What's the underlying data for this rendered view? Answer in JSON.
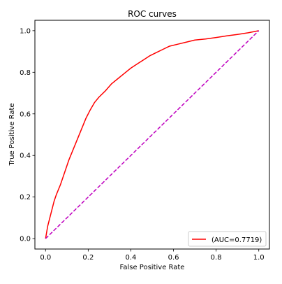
{
  "chart_data": {
    "type": "line",
    "title": "ROC curves",
    "xlabel": "False Positive Rate",
    "ylabel": "True Positive Rate",
    "xlim": [
      -0.05,
      1.05
    ],
    "ylim": [
      -0.05,
      1.05
    ],
    "xticks": [
      "0.0",
      "0.2",
      "0.4",
      "0.6",
      "0.8",
      "1.0"
    ],
    "yticks": [
      "0.0",
      "0.2",
      "0.4",
      "0.6",
      "0.8",
      "1.0"
    ],
    "grid": false,
    "legend_position": "lower right",
    "series": [
      {
        "name": "(AUC=0.7719)",
        "color": "#ff0000",
        "style": "solid",
        "x": [
          0.0,
          0.005,
          0.01,
          0.02,
          0.03,
          0.04,
          0.05,
          0.07,
          0.09,
          0.11,
          0.13,
          0.15,
          0.17,
          0.19,
          0.21,
          0.23,
          0.25,
          0.28,
          0.31,
          0.34,
          0.37,
          0.4,
          0.43,
          0.46,
          0.49,
          0.52,
          0.55,
          0.58,
          0.62,
          0.66,
          0.7,
          0.75,
          0.8,
          0.85,
          0.9,
          0.95,
          1.0
        ],
        "y": [
          0.0,
          0.03,
          0.06,
          0.1,
          0.14,
          0.18,
          0.21,
          0.26,
          0.32,
          0.38,
          0.43,
          0.48,
          0.53,
          0.58,
          0.62,
          0.655,
          0.68,
          0.71,
          0.745,
          0.77,
          0.795,
          0.82,
          0.84,
          0.86,
          0.88,
          0.895,
          0.91,
          0.925,
          0.935,
          0.945,
          0.955,
          0.96,
          0.967,
          0.975,
          0.982,
          0.99,
          1.0
        ]
      },
      {
        "name": "",
        "color": "#bf00bf",
        "style": "dashed",
        "x": [
          0.0,
          1.0
        ],
        "y": [
          0.0,
          1.0
        ]
      }
    ]
  }
}
